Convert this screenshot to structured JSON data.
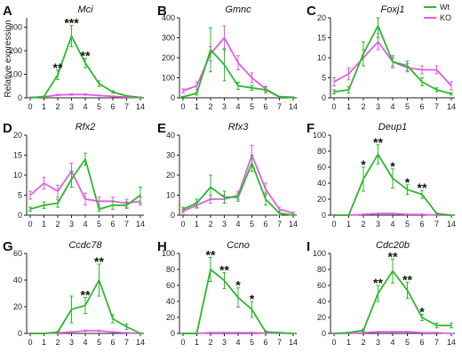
{
  "figure": {
    "ylabel": "Relative expression",
    "legend": [
      {
        "name": "Wt",
        "color": "#2db82d"
      },
      {
        "name": "KO",
        "color": "#e25ce2"
      }
    ],
    "legend_position": "top-right"
  },
  "colors": {
    "wt": "#2db82d",
    "ko": "#e25ce2",
    "axis": "#222222"
  },
  "chart_data": [
    {
      "type": "line",
      "panel": "A",
      "title": "Mci",
      "x": [
        "0",
        "1",
        "2",
        "3",
        "4",
        "5",
        "6",
        "7",
        "14"
      ],
      "ylim": [
        0,
        340
      ],
      "yticks": [
        0,
        100,
        200,
        300
      ],
      "series": [
        {
          "name": "Wt",
          "values": [
            0,
            5,
            98,
            262,
            148,
            60,
            25,
            8,
            2
          ],
          "errors": [
            1,
            2,
            20,
            45,
            20,
            12,
            5,
            2,
            1
          ]
        },
        {
          "name": "KO",
          "values": [
            2,
            4,
            12,
            14,
            14,
            10,
            6,
            3,
            2
          ],
          "errors": [
            1,
            2,
            3,
            3,
            3,
            2,
            2,
            1,
            1
          ]
        }
      ],
      "annotations": [
        {
          "x": "2",
          "text": "**"
        },
        {
          "x": "3",
          "text": "***"
        },
        {
          "x": "4",
          "text": "**"
        }
      ]
    },
    {
      "type": "line",
      "panel": "B",
      "title": "Gmnc",
      "x": [
        "0",
        "1",
        "2",
        "3",
        "4",
        "5",
        "6",
        "7",
        "14"
      ],
      "ylim": [
        0,
        400
      ],
      "yticks": [
        0,
        100,
        200,
        300,
        400
      ],
      "series": [
        {
          "name": "Wt",
          "values": [
            5,
            22,
            240,
            165,
            60,
            50,
            40,
            5,
            2
          ],
          "errors": [
            2,
            8,
            110,
            80,
            18,
            12,
            15,
            3,
            1
          ]
        },
        {
          "name": "KO",
          "values": [
            35,
            60,
            220,
            300,
            175,
            100,
            45,
            5,
            3
          ],
          "errors": [
            10,
            20,
            35,
            60,
            35,
            25,
            12,
            2,
            1
          ]
        }
      ],
      "annotations": []
    },
    {
      "type": "line",
      "panel": "C",
      "title": "Foxj1",
      "x": [
        "0",
        "1",
        "2",
        "3",
        "4",
        "5",
        "6",
        "7",
        "14"
      ],
      "ylim": [
        0,
        20
      ],
      "yticks": [
        0,
        5,
        10,
        15,
        20
      ],
      "series": [
        {
          "name": "Wt",
          "values": [
            1.5,
            2,
            11,
            18,
            9,
            8,
            4,
            2,
            1
          ],
          "errors": [
            0.5,
            0.8,
            3,
            3,
            1.5,
            1.2,
            1,
            0.5,
            0.3
          ]
        },
        {
          "name": "KO",
          "values": [
            4,
            6,
            10,
            14,
            9,
            7.5,
            7,
            7,
            3
          ],
          "errors": [
            1,
            1.5,
            2,
            2,
            1,
            1,
            1,
            1,
            1
          ]
        }
      ],
      "annotations": []
    },
    {
      "type": "line",
      "panel": "D",
      "title": "Rfx2",
      "x": [
        "0",
        "1",
        "2",
        "3",
        "4",
        "5",
        "6",
        "7",
        "14"
      ],
      "ylim": [
        0,
        20
      ],
      "yticks": [
        0,
        5,
        10,
        15,
        20
      ],
      "series": [
        {
          "name": "Wt",
          "values": [
            1.5,
            2.5,
            3,
            9,
            14,
            1.5,
            2.5,
            2.5,
            5
          ],
          "errors": [
            0.5,
            0.8,
            1,
            2,
            1.5,
            0.5,
            1,
            0.8,
            2
          ]
        },
        {
          "name": "KO",
          "values": [
            5,
            8,
            6,
            11,
            4,
            3.5,
            3.5,
            3,
            3.5
          ],
          "errors": [
            1,
            1.5,
            1.5,
            2,
            1.5,
            1,
            1,
            1,
            1
          ]
        }
      ],
      "annotations": []
    },
    {
      "type": "line",
      "panel": "E",
      "title": "Rfx3",
      "x": [
        "0",
        "1",
        "2",
        "3",
        "4",
        "5",
        "6",
        "7",
        "14"
      ],
      "ylim": [
        0,
        40
      ],
      "yticks": [
        0,
        10,
        20,
        30,
        40
      ],
      "series": [
        {
          "name": "Wt",
          "values": [
            3,
            6,
            14,
            9,
            9,
            26,
            8,
            1,
            0
          ],
          "errors": [
            1,
            2,
            6,
            3,
            2,
            4,
            3,
            1,
            0.5
          ]
        },
        {
          "name": "KO",
          "values": [
            2,
            5,
            8,
            8,
            10,
            30,
            13,
            3,
            1
          ],
          "errors": [
            1,
            1.5,
            2,
            2,
            2,
            5,
            3,
            1,
            0.5
          ]
        }
      ],
      "annotations": []
    },
    {
      "type": "line",
      "panel": "F",
      "title": "Deup1",
      "x": [
        "0",
        "1",
        "2",
        "3",
        "4",
        "5",
        "6",
        "7",
        "14"
      ],
      "ylim": [
        0,
        100
      ],
      "yticks": [
        0,
        20,
        40,
        60,
        80,
        100
      ],
      "series": [
        {
          "name": "Wt",
          "values": [
            0,
            0,
            45,
            76,
            46,
            32,
            26,
            2,
            0
          ],
          "errors": [
            0.5,
            0.5,
            15,
            12,
            12,
            6,
            5,
            1,
            0.5
          ]
        },
        {
          "name": "KO",
          "values": [
            0,
            0,
            1,
            2,
            2,
            1,
            1,
            0,
            0
          ],
          "errors": [
            0.3,
            0.3,
            0.5,
            0.5,
            0.5,
            0.5,
            0.3,
            0.2,
            0.2
          ]
        }
      ],
      "annotations": [
        {
          "x": "2",
          "text": "*"
        },
        {
          "x": "3",
          "text": "**"
        },
        {
          "x": "4",
          "text": "*"
        },
        {
          "x": "5",
          "text": "*"
        },
        {
          "x": "6",
          "text": "**"
        }
      ]
    },
    {
      "type": "line",
      "panel": "G",
      "title": "Ccdc78",
      "x": [
        "0",
        "1",
        "2",
        "3",
        "4",
        "5",
        "6",
        "7",
        "14"
      ],
      "ylim": [
        0,
        60
      ],
      "yticks": [
        0,
        20,
        40,
        60
      ],
      "series": [
        {
          "name": "Wt",
          "values": [
            0,
            0,
            1,
            18,
            21,
            40,
            11,
            5,
            0
          ],
          "errors": [
            0.3,
            0.3,
            0.5,
            10,
            6,
            12,
            3,
            2,
            0.5
          ]
        },
        {
          "name": "KO",
          "values": [
            0,
            0,
            0.5,
            1,
            2,
            2,
            1,
            0.5,
            0
          ],
          "errors": [
            0.2,
            0.2,
            0.3,
            0.5,
            0.5,
            0.5,
            0.3,
            0.2,
            0.2
          ]
        }
      ],
      "annotations": [
        {
          "x": "4",
          "text": "**"
        },
        {
          "x": "5",
          "text": "**"
        }
      ]
    },
    {
      "type": "line",
      "panel": "H",
      "title": "Ccno",
      "x": [
        "0",
        "1",
        "2",
        "3",
        "4",
        "5",
        "6",
        "7",
        "14"
      ],
      "ylim": [
        0,
        100
      ],
      "yticks": [
        0,
        20,
        40,
        60,
        80,
        100
      ],
      "series": [
        {
          "name": "Wt",
          "values": [
            0,
            0,
            80,
            66,
            45,
            30,
            2,
            1,
            0
          ],
          "errors": [
            0.5,
            0.5,
            15,
            10,
            12,
            10,
            1,
            0.5,
            0.3
          ]
        },
        {
          "name": "KO",
          "values": [
            0,
            0,
            1,
            1,
            1,
            1,
            0.5,
            0.5,
            0
          ],
          "errors": [
            0.3,
            0.3,
            0.5,
            0.5,
            0.5,
            0.5,
            0.3,
            0.2,
            0.2
          ]
        }
      ],
      "annotations": [
        {
          "x": "2",
          "text": "**"
        },
        {
          "x": "3",
          "text": "**"
        },
        {
          "x": "4",
          "text": "*"
        },
        {
          "x": "5",
          "text": "*"
        }
      ]
    },
    {
      "type": "line",
      "panel": "I",
      "title": "Cdc20b",
      "x": [
        "0",
        "1",
        "2",
        "3",
        "4",
        "5",
        "6",
        "7",
        "14"
      ],
      "ylim": [
        0,
        100
      ],
      "yticks": [
        0,
        20,
        40,
        60,
        80,
        100
      ],
      "series": [
        {
          "name": "Wt",
          "values": [
            0,
            1,
            4,
            50,
            78,
            54,
            20,
            10,
            10
          ],
          "errors": [
            0.5,
            0.5,
            1.5,
            10,
            15,
            10,
            4,
            3,
            3
          ]
        },
        {
          "name": "KO",
          "values": [
            0,
            0,
            1,
            2,
            2,
            2,
            1,
            1,
            0
          ],
          "errors": [
            0.3,
            0.3,
            0.5,
            0.5,
            0.5,
            0.5,
            0.3,
            0.3,
            0.2
          ]
        }
      ],
      "annotations": [
        {
          "x": "3",
          "text": "**"
        },
        {
          "x": "4",
          "text": "**"
        },
        {
          "x": "5",
          "text": "**"
        },
        {
          "x": "6",
          "text": "*"
        }
      ]
    }
  ]
}
